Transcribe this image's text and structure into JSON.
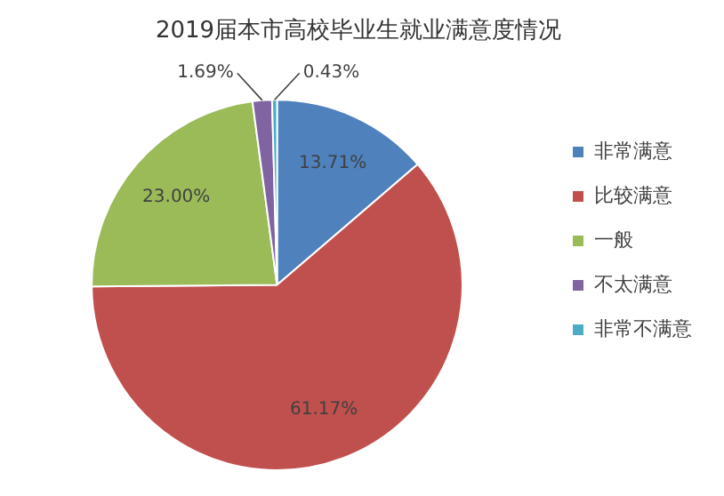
{
  "chart_data": {
    "type": "pie",
    "title": "2019届本市高校毕业生就业满意度情况",
    "categories": [
      "非常满意",
      "比较满意",
      "一般",
      "不太满意",
      "非常不满意"
    ],
    "values": [
      13.71,
      61.17,
      23.0,
      1.69,
      0.43
    ],
    "value_labels": [
      "13.71%",
      "61.17%",
      "23.00%",
      "1.69%",
      "0.43%"
    ],
    "colors": [
      "#4f81bd",
      "#c0504d",
      "#9bbb59",
      "#8064a2",
      "#4bacc6"
    ],
    "legend": "right"
  }
}
